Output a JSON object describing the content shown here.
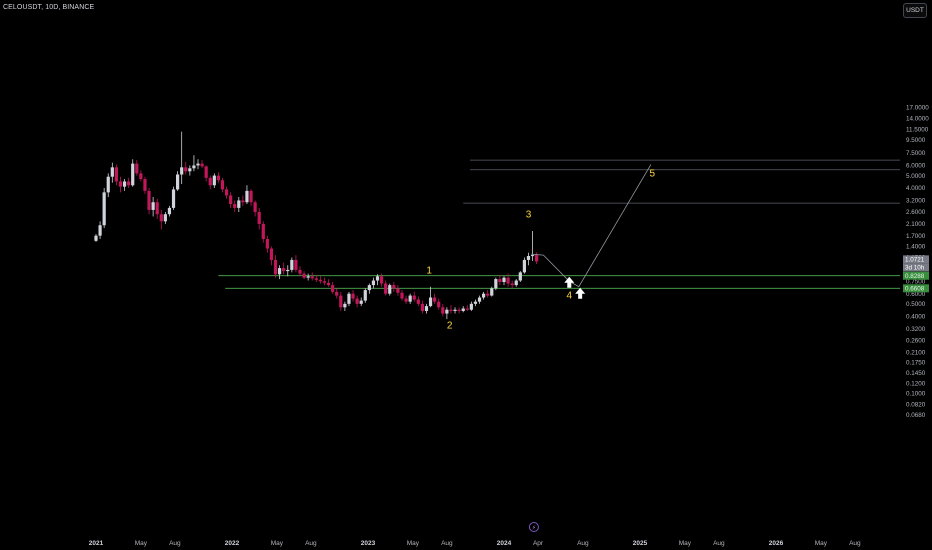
{
  "header": {
    "symbol_line": "CELOUSDT, 10D, BINANCE",
    "currency_button": "USDT"
  },
  "colors": {
    "background": "#000000",
    "candle_up": "#d1d4dc",
    "candle_down": "#c2185b",
    "support_line": "#4caf50",
    "target_line": "#5d606b",
    "wave_label": "#ffd740",
    "projection_line": "#9598a1",
    "axis_text": "#b2b5be",
    "price_tag_green": "#388e3c",
    "price_tag_gray": "#787b86"
  },
  "chart_data": {
    "type": "candlestick",
    "scale": "log",
    "y_axis_ticks": [
      "17.0000",
      "14.0000",
      "11.5000",
      "9.5000",
      "7.5000",
      "6.0000",
      "5.0000",
      "4.0000",
      "3.2000",
      "2.6000",
      "2.1000",
      "1.7000",
      "1.4000",
      "1.1500",
      "0.9500",
      "0.7500",
      "0.6000",
      "0.5000",
      "0.4000",
      "0.3200",
      "0.2600",
      "0.2100",
      "0.1750",
      "0.1450",
      "0.1200",
      "0.1000",
      "0.0820",
      "0.0680"
    ],
    "x_axis_ticks": [
      {
        "label": "2021",
        "t": 2021.0,
        "bold": true
      },
      {
        "label": "May",
        "t": 2021.33
      },
      {
        "label": "Aug",
        "t": 2021.58
      },
      {
        "label": "2022",
        "t": 2022.0,
        "bold": true
      },
      {
        "label": "May",
        "t": 2022.33
      },
      {
        "label": "Aug",
        "t": 2022.58
      },
      {
        "label": "2023",
        "t": 2023.0,
        "bold": true
      },
      {
        "label": "May",
        "t": 2023.33
      },
      {
        "label": "Aug",
        "t": 2023.58
      },
      {
        "label": "2024",
        "t": 2024.0,
        "bold": true
      },
      {
        "label": "Apr",
        "t": 2024.25
      },
      {
        "label": "Aug",
        "t": 2024.58
      },
      {
        "label": "2025",
        "t": 2025.0,
        "bold": true
      },
      {
        "label": "May",
        "t": 2025.33
      },
      {
        "label": "Aug",
        "t": 2025.58
      },
      {
        "label": "2026",
        "t": 2026.0,
        "bold": true
      },
      {
        "label": "May",
        "t": 2026.33
      },
      {
        "label": "Aug",
        "t": 2026.58
      }
    ],
    "price_labels": [
      {
        "text": "1.0721",
        "value": 1.0721,
        "kind": "gray"
      },
      {
        "text": "3d 10h",
        "value": 1.0,
        "kind": "gray_sub"
      },
      {
        "text": "0.8288",
        "value": 0.8288,
        "kind": "green"
      },
      {
        "text": "0.6608",
        "value": 0.6608,
        "kind": "green"
      }
    ],
    "horizontal_levels": [
      {
        "value": 0.8288,
        "t_start": 2021.9,
        "style": "support"
      },
      {
        "value": 0.6608,
        "t_start": 2021.95,
        "style": "support"
      },
      {
        "value": 6.6,
        "t_start": 2023.75,
        "style": "target"
      },
      {
        "value": 5.55,
        "t_start": 2023.75,
        "style": "target"
      },
      {
        "value": 3.05,
        "t_start": 2023.7,
        "style": "target"
      }
    ],
    "wave_labels": [
      {
        "text": "1",
        "t": 2023.45,
        "price": 0.86
      },
      {
        "text": "2",
        "t": 2023.6,
        "price": 0.32
      },
      {
        "text": "3",
        "t": 2024.18,
        "price": 2.35
      },
      {
        "text": "4",
        "t": 2024.48,
        "price": 0.55
      },
      {
        "text": "5",
        "t": 2025.09,
        "price": 4.9
      }
    ],
    "projection_path": [
      {
        "t": 2024.2,
        "price": 1.22
      },
      {
        "t": 2024.29,
        "price": 1.2
      },
      {
        "t": 2024.48,
        "price": 0.75
      },
      {
        "t": 2024.55,
        "price": 0.68
      },
      {
        "t": 2025.08,
        "price": 6.1
      }
    ],
    "arrows": [
      {
        "t": 2024.48,
        "price": 0.73
      },
      {
        "t": 2024.56,
        "price": 0.6
      }
    ],
    "events_marker": {
      "text": "⚡",
      "t": 2024.22
    },
    "candles": [
      [
        2021.0,
        1.55,
        1.75,
        1.52,
        1.7
      ],
      [
        2021.03,
        1.7,
        2.2,
        1.6,
        2.05
      ],
      [
        2021.06,
        2.05,
        4.0,
        1.95,
        3.7
      ],
      [
        2021.09,
        3.7,
        5.2,
        3.4,
        4.9
      ],
      [
        2021.12,
        4.9,
        6.3,
        4.4,
        5.8
      ],
      [
        2021.15,
        5.8,
        6.1,
        4.2,
        4.5
      ],
      [
        2021.18,
        4.5,
        4.9,
        3.7,
        4.1
      ],
      [
        2021.21,
        4.1,
        4.7,
        3.8,
        4.5
      ],
      [
        2021.24,
        4.5,
        4.8,
        4.0,
        4.2
      ],
      [
        2021.27,
        4.2,
        6.7,
        4.1,
        6.2
      ],
      [
        2021.3,
        6.2,
        6.6,
        5.0,
        5.2
      ],
      [
        2021.33,
        5.2,
        5.5,
        4.5,
        4.7
      ],
      [
        2021.36,
        4.7,
        4.9,
        3.6,
        3.8
      ],
      [
        2021.39,
        3.8,
        4.0,
        2.5,
        2.7
      ],
      [
        2021.42,
        2.7,
        3.4,
        2.4,
        3.1
      ],
      [
        2021.45,
        3.1,
        3.3,
        2.3,
        2.5
      ],
      [
        2021.48,
        2.5,
        2.7,
        1.9,
        2.2
      ],
      [
        2021.51,
        2.2,
        2.6,
        2.1,
        2.5
      ],
      [
        2021.54,
        2.5,
        2.9,
        2.4,
        2.8
      ],
      [
        2021.57,
        2.8,
        4.1,
        2.7,
        3.9
      ],
      [
        2021.6,
        3.9,
        5.4,
        3.8,
        5.1
      ],
      [
        2021.63,
        5.1,
        11.0,
        4.3,
        5.8
      ],
      [
        2021.66,
        5.8,
        6.4,
        5.1,
        5.4
      ],
      [
        2021.69,
        5.4,
        6.0,
        5.0,
        5.7
      ],
      [
        2021.72,
        5.7,
        7.2,
        5.4,
        6.0
      ],
      [
        2021.75,
        6.0,
        6.7,
        5.6,
        6.2
      ],
      [
        2021.78,
        6.2,
        6.6,
        5.7,
        5.9
      ],
      [
        2021.81,
        5.9,
        6.0,
        4.5,
        4.8
      ],
      [
        2021.84,
        4.8,
        5.0,
        3.9,
        4.2
      ],
      [
        2021.87,
        4.2,
        5.2,
        4.0,
        5.0
      ],
      [
        2021.9,
        5.0,
        5.3,
        4.4,
        4.6
      ],
      [
        2021.93,
        4.6,
        4.8,
        3.7,
        3.9
      ],
      [
        2021.96,
        3.9,
        4.1,
        3.3,
        3.5
      ],
      [
        2021.99,
        3.5,
        3.7,
        2.8,
        3.0
      ],
      [
        2022.02,
        3.0,
        3.2,
        2.6,
        2.8
      ],
      [
        2022.05,
        2.8,
        3.4,
        2.6,
        3.2
      ],
      [
        2022.08,
        3.2,
        3.5,
        2.9,
        3.1
      ],
      [
        2022.11,
        3.1,
        4.2,
        3.0,
        3.8
      ],
      [
        2022.14,
        3.8,
        3.9,
        2.9,
        3.1
      ],
      [
        2022.17,
        3.1,
        3.2,
        2.4,
        2.6
      ],
      [
        2022.2,
        2.6,
        2.8,
        1.9,
        2.1
      ],
      [
        2022.23,
        2.1,
        2.2,
        1.5,
        1.6
      ],
      [
        2022.26,
        1.6,
        1.7,
        1.25,
        1.35
      ],
      [
        2022.29,
        1.35,
        1.4,
        1.0,
        1.1
      ],
      [
        2022.32,
        1.1,
        1.2,
        0.8,
        0.85
      ],
      [
        2022.35,
        0.85,
        1.0,
        0.78,
        0.95
      ],
      [
        2022.38,
        0.95,
        1.05,
        0.85,
        0.9
      ],
      [
        2022.41,
        0.9,
        1.0,
        0.82,
        0.92
      ],
      [
        2022.44,
        0.92,
        1.15,
        0.88,
        1.1
      ],
      [
        2022.47,
        1.1,
        1.2,
        0.88,
        0.92
      ],
      [
        2022.5,
        0.92,
        0.98,
        0.82,
        0.86
      ],
      [
        2022.53,
        0.86,
        0.9,
        0.78,
        0.8
      ],
      [
        2022.56,
        0.8,
        0.86,
        0.76,
        0.82
      ],
      [
        2022.59,
        0.82,
        0.88,
        0.76,
        0.79
      ],
      [
        2022.62,
        0.79,
        0.84,
        0.74,
        0.77
      ],
      [
        2022.65,
        0.77,
        0.82,
        0.72,
        0.75
      ],
      [
        2022.68,
        0.75,
        0.8,
        0.7,
        0.73
      ],
      [
        2022.71,
        0.73,
        0.78,
        0.68,
        0.7
      ],
      [
        2022.74,
        0.7,
        0.74,
        0.6,
        0.62
      ],
      [
        2022.77,
        0.62,
        0.66,
        0.55,
        0.58
      ],
      [
        2022.8,
        0.58,
        0.62,
        0.44,
        0.47
      ],
      [
        2022.83,
        0.47,
        0.52,
        0.44,
        0.5
      ],
      [
        2022.86,
        0.5,
        0.62,
        0.48,
        0.6
      ],
      [
        2022.89,
        0.6,
        0.64,
        0.52,
        0.55
      ],
      [
        2022.92,
        0.55,
        0.58,
        0.47,
        0.5
      ],
      [
        2022.95,
        0.5,
        0.56,
        0.48,
        0.53
      ],
      [
        2022.98,
        0.53,
        0.66,
        0.51,
        0.64
      ],
      [
        2023.01,
        0.64,
        0.72,
        0.6,
        0.7
      ],
      [
        2023.04,
        0.7,
        0.8,
        0.66,
        0.76
      ],
      [
        2023.07,
        0.76,
        0.85,
        0.7,
        0.82
      ],
      [
        2023.1,
        0.82,
        0.86,
        0.68,
        0.72
      ],
      [
        2023.13,
        0.72,
        0.76,
        0.58,
        0.6
      ],
      [
        2023.16,
        0.6,
        0.72,
        0.58,
        0.7
      ],
      [
        2023.19,
        0.7,
        0.74,
        0.62,
        0.66
      ],
      [
        2023.22,
        0.66,
        0.7,
        0.58,
        0.61
      ],
      [
        2023.25,
        0.61,
        0.64,
        0.53,
        0.55
      ],
      [
        2023.28,
        0.55,
        0.58,
        0.5,
        0.52
      ],
      [
        2023.31,
        0.52,
        0.6,
        0.5,
        0.58
      ],
      [
        2023.34,
        0.58,
        0.62,
        0.52,
        0.54
      ],
      [
        2023.37,
        0.54,
        0.57,
        0.48,
        0.5
      ],
      [
        2023.4,
        0.5,
        0.53,
        0.42,
        0.44
      ],
      [
        2023.43,
        0.44,
        0.5,
        0.42,
        0.48
      ],
      [
        2023.46,
        0.48,
        0.68,
        0.47,
        0.56
      ],
      [
        2023.49,
        0.56,
        0.6,
        0.5,
        0.52
      ],
      [
        2023.52,
        0.52,
        0.55,
        0.45,
        0.47
      ],
      [
        2023.55,
        0.47,
        0.5,
        0.4,
        0.42
      ],
      [
        2023.58,
        0.42,
        0.47,
        0.38,
        0.45
      ],
      [
        2023.61,
        0.45,
        0.49,
        0.42,
        0.44
      ],
      [
        2023.64,
        0.44,
        0.47,
        0.42,
        0.45
      ],
      [
        2023.67,
        0.45,
        0.47,
        0.42,
        0.44
      ],
      [
        2023.7,
        0.44,
        0.48,
        0.43,
        0.46
      ],
      [
        2023.73,
        0.46,
        0.49,
        0.44,
        0.45
      ],
      [
        2023.76,
        0.45,
        0.52,
        0.44,
        0.5
      ],
      [
        2023.79,
        0.5,
        0.54,
        0.48,
        0.52
      ],
      [
        2023.82,
        0.52,
        0.58,
        0.5,
        0.56
      ],
      [
        2023.85,
        0.56,
        0.62,
        0.54,
        0.6
      ],
      [
        2023.88,
        0.6,
        0.64,
        0.56,
        0.58
      ],
      [
        2023.91,
        0.58,
        0.68,
        0.57,
        0.66
      ],
      [
        2023.94,
        0.66,
        0.8,
        0.64,
        0.78
      ],
      [
        2023.97,
        0.78,
        0.84,
        0.7,
        0.74
      ],
      [
        2024.0,
        0.74,
        0.82,
        0.7,
        0.8
      ],
      [
        2024.03,
        0.8,
        0.86,
        0.68,
        0.72
      ],
      [
        2024.06,
        0.72,
        0.76,
        0.66,
        0.7
      ],
      [
        2024.09,
        0.7,
        0.78,
        0.68,
        0.76
      ],
      [
        2024.12,
        0.76,
        0.9,
        0.74,
        0.88
      ],
      [
        2024.15,
        0.88,
        1.15,
        0.86,
        1.1
      ],
      [
        2024.18,
        1.1,
        1.25,
        1.0,
        1.18
      ],
      [
        2024.21,
        1.18,
        1.85,
        1.08,
        1.2
      ],
      [
        2024.24,
        1.2,
        1.26,
        1.02,
        1.07
      ]
    ]
  }
}
